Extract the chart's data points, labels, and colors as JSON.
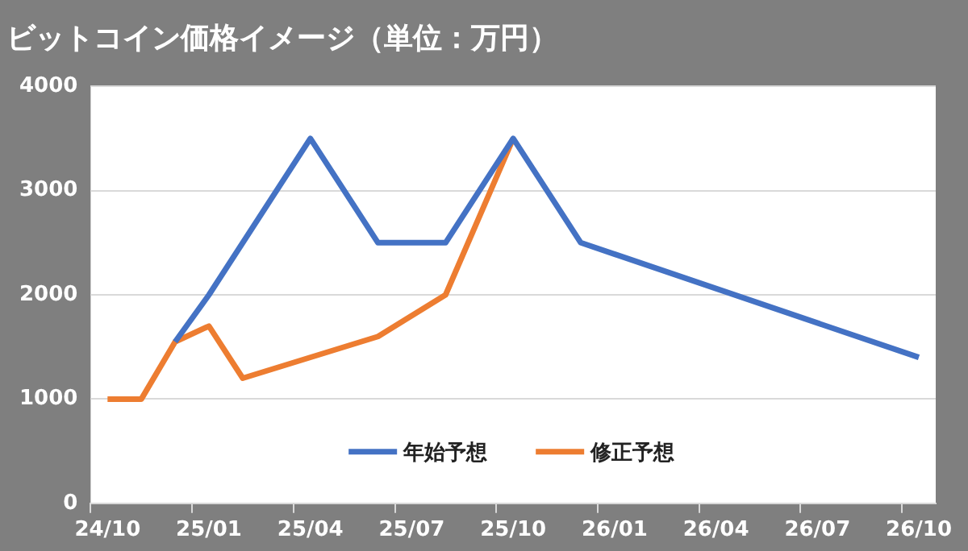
{
  "chart_data": {
    "type": "line",
    "title": "ビットコイン価格イメージ（単位：万円）",
    "categories": [
      "24/10",
      null,
      null,
      "25/01",
      null,
      null,
      "25/04",
      null,
      null,
      "25/07",
      null,
      null,
      "25/10",
      null,
      null,
      "26/01",
      null,
      null,
      "26/04",
      null,
      null,
      "26/07",
      null,
      null,
      "26/10"
    ],
    "series": [
      {
        "name": "年始予想",
        "color": "#4472c4",
        "values": [
          null,
          null,
          1550,
          2000,
          null,
          null,
          3500,
          null,
          2500,
          null,
          2500,
          null,
          3500,
          null,
          2500,
          null,
          null,
          null,
          null,
          null,
          null,
          null,
          null,
          null,
          1400
        ]
      },
      {
        "name": "修正予想",
        "color": "#ed7d31",
        "values": [
          1000,
          1000,
          1550,
          1700,
          1200,
          null,
          null,
          null,
          1600,
          null,
          2000,
          null,
          3500,
          null,
          null,
          null,
          null,
          null,
          null,
          null,
          null,
          null,
          null,
          null,
          null
        ]
      }
    ],
    "ylim": [
      0,
      4000
    ],
    "yticks": [
      0,
      1000,
      2000,
      3000,
      4000
    ],
    "grid": "y",
    "legend": "bottom",
    "marker": "none",
    "line_style": "solid"
  }
}
